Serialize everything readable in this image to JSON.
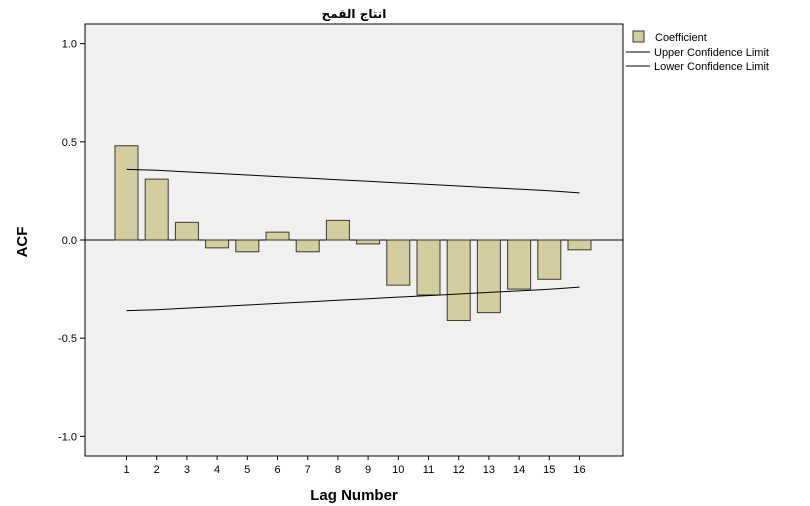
{
  "chart_data": {
    "type": "bar",
    "title": "انتاج القمح",
    "xlabel": "Lag Number",
    "ylabel": "ACF",
    "ylim": [
      -1.1,
      1.1
    ],
    "grid": false,
    "legend_position": "top-right",
    "x": [
      1,
      2,
      3,
      4,
      5,
      6,
      7,
      8,
      9,
      10,
      11,
      12,
      13,
      14,
      15,
      16
    ],
    "x_tick_labels": [
      "1",
      "2",
      "3",
      "4",
      "5",
      "6",
      "7",
      "8",
      "9",
      "10",
      "11",
      "12",
      "13",
      "14",
      "15",
      "16"
    ],
    "y_ticks": [
      1.0,
      0.5,
      0.0,
      -0.5,
      -1.0
    ],
    "y_tick_labels": [
      "1.0",
      "0.5",
      "0.0",
      "-0.5",
      "-1.0"
    ],
    "series": [
      {
        "name": "Coefficient",
        "kind": "bar",
        "values": [
          0.48,
          0.31,
          0.09,
          -0.04,
          -0.06,
          0.04,
          -0.06,
          0.1,
          -0.02,
          -0.23,
          -0.28,
          -0.41,
          -0.37,
          -0.25,
          -0.2,
          -0.05
        ]
      },
      {
        "name": "Upper Confidence Limit",
        "kind": "line",
        "values": [
          0.36,
          0.355,
          0.347,
          0.339,
          0.331,
          0.323,
          0.315,
          0.307,
          0.299,
          0.291,
          0.283,
          0.275,
          0.267,
          0.259,
          0.251,
          0.24
        ]
      },
      {
        "name": "Lower Confidence Limit",
        "kind": "line",
        "values": [
          -0.36,
          -0.355,
          -0.347,
          -0.339,
          -0.331,
          -0.323,
          -0.315,
          -0.307,
          -0.299,
          -0.291,
          -0.283,
          -0.275,
          -0.267,
          -0.259,
          -0.251,
          -0.24
        ]
      }
    ],
    "colors": {
      "bar_fill": "#d3cda0",
      "bar_stroke": "#3a3a2a",
      "plot_background": "#f0f0f0",
      "line": "#000000"
    }
  }
}
